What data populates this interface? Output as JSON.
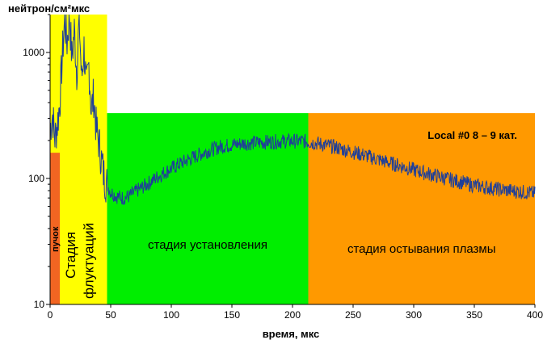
{
  "chart_data": {
    "type": "line",
    "ylabel": "нейтрон/см²мкс",
    "xlabel": "время, мкс",
    "x_scale": "linear",
    "y_scale": "log",
    "xlim": [
      0,
      400
    ],
    "ylim": [
      10,
      2000
    ],
    "x_ticks": [
      "0",
      "50",
      "100",
      "150",
      "200",
      "250",
      "300",
      "350",
      "400"
    ],
    "y_ticks": [
      "10",
      "100",
      "1000"
    ],
    "grid": false,
    "legend": "Local #0  8 – 9 кат.",
    "legend_placement": "top-right",
    "regions": [
      {
        "label": "пучок",
        "x_start": 0,
        "x_end": 8,
        "y_top": 160,
        "color": "#f26522"
      },
      {
        "label": "Стадия",
        "label2": "флуктуаций",
        "x_start": 0,
        "x_end": 47,
        "y_top": 2000,
        "color": "#ffff00"
      },
      {
        "label": "стадия установления",
        "x_start": 47,
        "x_end": 213,
        "y_top": 330,
        "color": "#00ee00"
      },
      {
        "label": "стадия остывания плазмы",
        "x_start": 213,
        "x_end": 400,
        "y_top": 330,
        "color": "#ff9900"
      }
    ],
    "series": [
      {
        "color": "#1f3f99",
        "x": [
          0,
          2,
          4,
          6,
          8,
          10,
          12,
          14,
          16,
          18,
          20,
          22,
          24,
          26,
          28,
          30,
          32,
          34,
          36,
          38,
          40,
          42,
          44,
          46,
          48,
          50,
          55,
          60,
          65,
          70,
          80,
          90,
          100,
          110,
          120,
          130,
          140,
          150,
          160,
          170,
          180,
          190,
          200,
          210,
          220,
          230,
          240,
          250,
          260,
          270,
          280,
          290,
          300,
          310,
          320,
          330,
          340,
          350,
          360,
          370,
          380,
          390,
          400
        ],
        "y": [
          250,
          320,
          210,
          270,
          400,
          900,
          1800,
          1200,
          2000,
          900,
          1500,
          700,
          1900,
          600,
          1100,
          500,
          800,
          350,
          450,
          250,
          200,
          150,
          110,
          95,
          85,
          78,
          72,
          70,
          72,
          78,
          90,
          105,
          120,
          135,
          150,
          165,
          178,
          185,
          190,
          192,
          195,
          197,
          198,
          197,
          190,
          182,
          172,
          162,
          152,
          142,
          133,
          125,
          117,
          110,
          104,
          98,
          93,
          88,
          85,
          82,
          80,
          78,
          76
        ]
      }
    ]
  }
}
